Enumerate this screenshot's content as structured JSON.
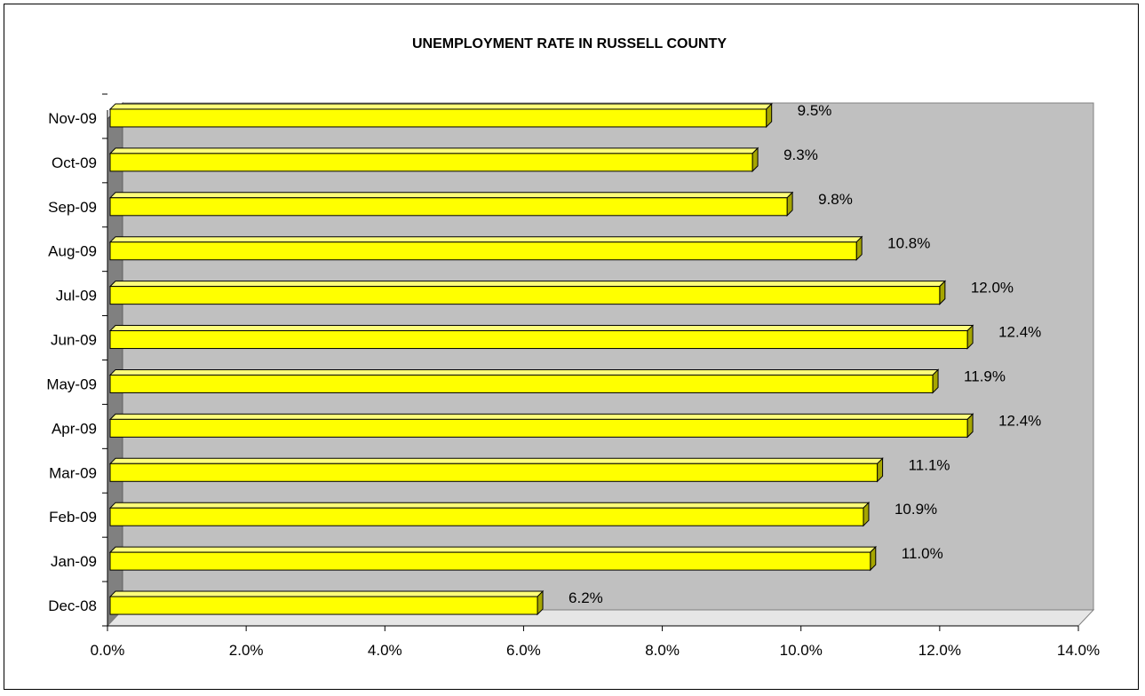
{
  "chart_data": {
    "type": "bar",
    "orientation": "horizontal",
    "title": "UNEMPLOYMENT RATE IN RUSSELL COUNTY",
    "xlabel": "",
    "ylabel": "",
    "categories": [
      "Dec-08",
      "Jan-09",
      "Feb-09",
      "Mar-09",
      "Apr-09",
      "May-09",
      "Jun-09",
      "Jul-09",
      "Aug-09",
      "Sep-09",
      "Oct-09",
      "Nov-09"
    ],
    "values": [
      6.2,
      11.0,
      10.9,
      11.1,
      12.4,
      11.9,
      12.4,
      12.0,
      10.8,
      9.8,
      9.3,
      9.5
    ],
    "data_labels": [
      "6.2%",
      "11.0%",
      "10.9%",
      "11.1%",
      "12.4%",
      "11.9%",
      "12.4%",
      "12.0%",
      "10.8%",
      "9.8%",
      "9.3%",
      "9.5%"
    ],
    "xlim": [
      0,
      14
    ],
    "x_ticks": [
      0,
      2,
      4,
      6,
      8,
      10,
      12,
      14
    ],
    "x_tick_labels": [
      "0.0%",
      "2.0%",
      "4.0%",
      "6.0%",
      "8.0%",
      "10.0%",
      "12.0%",
      "14.0%"
    ],
    "grid": false,
    "legend": "none",
    "style": "3d",
    "colors": {
      "bar_face": "#ffff00",
      "bar_top": "#ffff7a",
      "bar_side": "#a6a600",
      "plot_wall": "#c0c0c0",
      "plot_floor": "#e6e6e6",
      "left_wall": "#808080"
    }
  }
}
